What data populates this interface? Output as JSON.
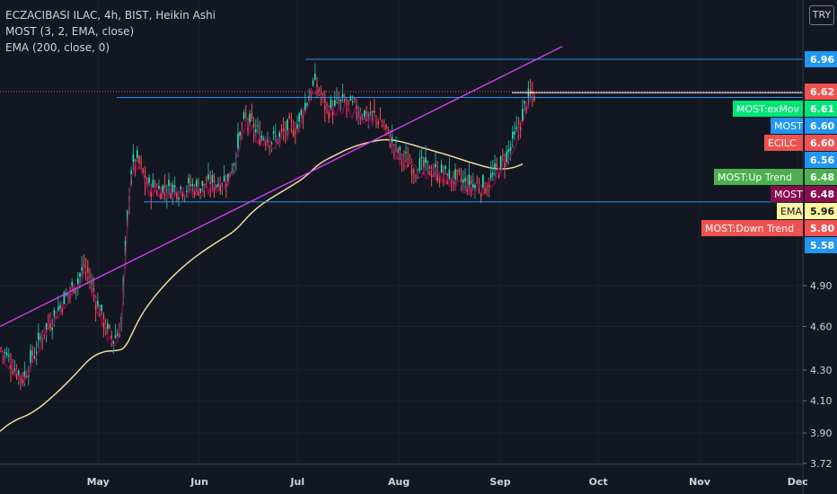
{
  "legend": {
    "title": "ECZACIBASI ILAC, 4h, BIST, Heikin Ashi",
    "indicator1": "MOST (3, 2, EMA, close)",
    "indicator2": "EMA (200, close, 0)"
  },
  "currency_button": "TRY",
  "chart_data": {
    "type": "candlestick",
    "title": "ECZACIBASI ILAC, 4h, BIST, Heikin Ashi",
    "y_axis": {
      "min": 3.72,
      "max": 7.2,
      "scale": "log",
      "ticks": [
        "3.72",
        "3.90",
        "4.10",
        "4.30",
        "4.60",
        "4.90",
        "5.58",
        "5.80",
        "5.96",
        "6.48",
        "6.48",
        "6.56",
        "6.60",
        "6.60",
        "6.61",
        "6.62",
        "6.96"
      ]
    },
    "x_axis": {
      "ticks": [
        "May",
        "Jun",
        "Jul",
        "Aug",
        "Sep",
        "Oct",
        "Nov",
        "Dec"
      ]
    },
    "close_path": {
      "dates": [
        "2020-04-01",
        "2020-04-08",
        "2020-04-15",
        "2020-04-22",
        "2020-04-27",
        "2020-05-01",
        "2020-05-05",
        "2020-05-08",
        "2020-05-11",
        "2020-05-13",
        "2020-05-16",
        "2020-05-20",
        "2020-05-27",
        "2020-06-03",
        "2020-06-10",
        "2020-06-15",
        "2020-06-19",
        "2020-06-24",
        "2020-07-01",
        "2020-07-06",
        "2020-07-10",
        "2020-07-15",
        "2020-07-20",
        "2020-07-26",
        "2020-08-01",
        "2020-08-06",
        "2020-08-13",
        "2020-08-20",
        "2020-08-27",
        "2020-08-31",
        "2020-09-03",
        "2020-09-06",
        "2020-09-09",
        "2020-09-12"
      ],
      "values": [
        4.45,
        4.25,
        4.6,
        4.85,
        5.05,
        4.75,
        4.5,
        4.6,
        5.9,
        5.95,
        5.72,
        5.7,
        5.71,
        5.72,
        5.8,
        6.35,
        6.2,
        6.15,
        6.3,
        6.72,
        6.45,
        6.5,
        6.42,
        6.35,
        6.0,
        5.9,
        5.85,
        5.75,
        5.72,
        5.85,
        6.0,
        6.2,
        6.52,
        6.62
      ]
    },
    "series": [
      {
        "name": "EMA",
        "value": 5.96,
        "color": "#f0dc9b"
      },
      {
        "name": "MOST",
        "value": 6.48,
        "color": "#880e4f"
      },
      {
        "name": "MOST:exMov",
        "value": 6.61,
        "color": "#00e676"
      }
    ],
    "trendline": {
      "color": "#e040fb",
      "from": {
        "date": "2020-04-01",
        "value": 4.6
      },
      "to": {
        "date": "2020-09-20",
        "value": 7.1
      }
    },
    "horizontal_lines": [
      {
        "value": 6.96,
        "color": "#2196f3"
      },
      {
        "value": 6.62,
        "color": "#ef5350",
        "style": "dotted"
      },
      {
        "value": 6.61,
        "color": "#ffffff"
      },
      {
        "value": 6.56,
        "color": "#2196f3"
      },
      {
        "value": 5.58,
        "color": "#2196f3"
      }
    ],
    "price_labels": [
      {
        "text": "6.96",
        "bg": "#2196f3",
        "value": 6.96
      },
      {
        "text": "6.62",
        "bg": "#ef5350",
        "value": 6.62
      },
      {
        "text": "MOST:exMov",
        "price": "6.61",
        "bg": "#00e676",
        "value": 6.61
      },
      {
        "text": "MOST",
        "price": "6.60",
        "bg": "#2196f3",
        "value": 6.6
      },
      {
        "text": "ECILC",
        "price": "6.60",
        "bg": "#ef5350",
        "value": 6.6
      },
      {
        "text": "6.56",
        "bg": "#2196f3",
        "value": 6.56
      },
      {
        "text": "MOST:Up Trend",
        "price": "6.48",
        "bg": "#4caf50",
        "value": 6.48
      },
      {
        "text": "MOST",
        "price": "6.48",
        "bg": "#880e4f",
        "value": 6.48
      },
      {
        "text": "EMA",
        "price": "5.96",
        "bg": "#fff59d",
        "fg": "#131722",
        "value": 5.96
      },
      {
        "text": "MOST:Down Trend",
        "price": "5.80",
        "bg": "#ef5350",
        "value": 5.8
      },
      {
        "text": "5.58",
        "bg": "#2196f3",
        "value": 5.58
      }
    ]
  }
}
